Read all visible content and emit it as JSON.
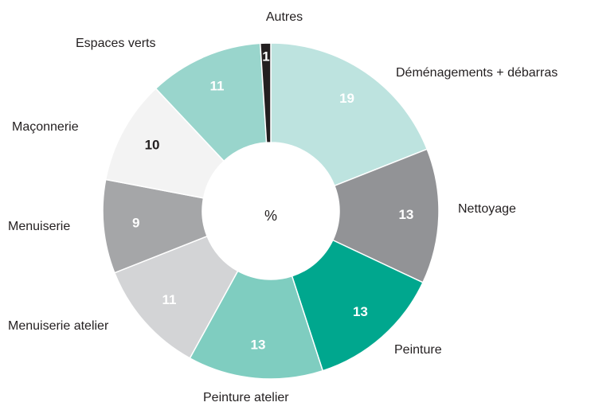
{
  "chart_data": {
    "type": "donut",
    "center_label": "%",
    "categories": [
      "Déménagements + débarras",
      "Nettoyage",
      "Peinture",
      "Peinture atelier",
      "Menuiserie atelier",
      "Menuiserie",
      "Maçonnerie",
      "Espaces verts",
      "Autres"
    ],
    "values": [
      19,
      13,
      13,
      13,
      11,
      9,
      10,
      11,
      1
    ],
    "colors": [
      "#bde3df",
      "#929396",
      "#00a78e",
      "#7fcdc0",
      "#d3d4d6",
      "#a5a6a8",
      "#f3f3f3",
      "#99d5cc",
      "#231f20"
    ],
    "label_colors": [
      "#ffffff",
      "#ffffff",
      "#ffffff",
      "#ffffff",
      "#ffffff",
      "#ffffff",
      "#231f20",
      "#ffffff",
      "#ffffff"
    ]
  }
}
